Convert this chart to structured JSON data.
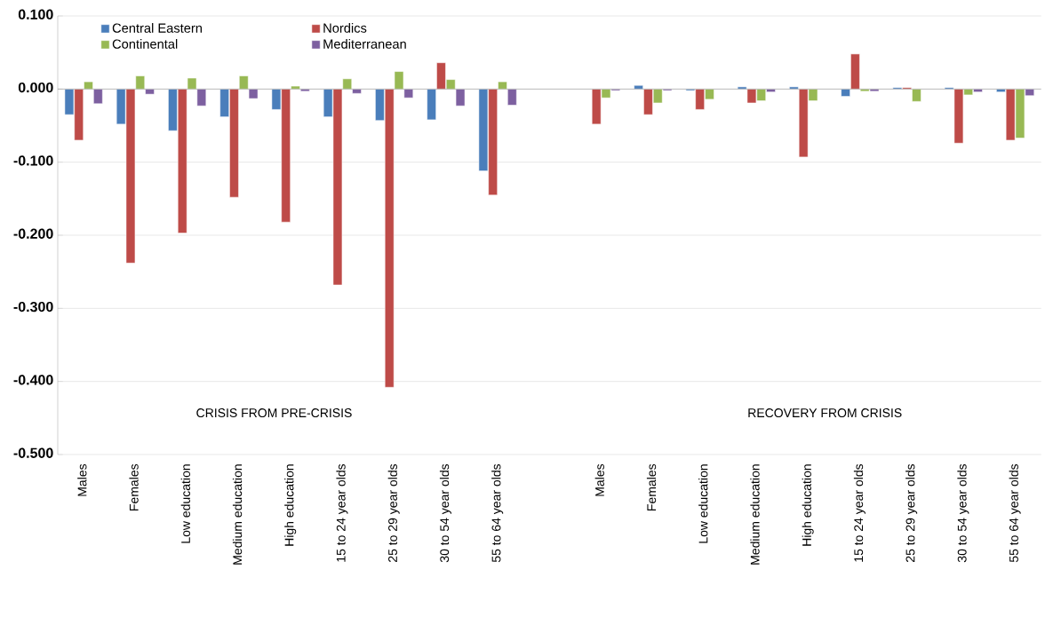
{
  "chart_data": {
    "type": "bar",
    "categories": [
      "Males",
      "Females",
      "Low education",
      "Medium education",
      "High education",
      "15 to 24 year olds",
      "25 to 29 year olds",
      "30 to 54 year olds",
      "55 to 64 year olds",
      null,
      "Males",
      "Females",
      "Low education",
      "Medium education",
      "High education",
      "15 to 24 year olds",
      "25 to 29 year olds",
      "30 to 54 year olds",
      "55 to 64 year olds"
    ],
    "series": [
      {
        "name": "Central Eastern",
        "color": "#4a7ebb",
        "values": [
          -0.035,
          -0.048,
          -0.057,
          -0.038,
          -0.028,
          -0.038,
          -0.043,
          -0.042,
          -0.112,
          null,
          null,
          0.005,
          -0.002,
          0.003,
          0.003,
          -0.01,
          0.002,
          0.002,
          -0.004
        ]
      },
      {
        "name": "Nordics",
        "color": "#be4b48",
        "values": [
          -0.07,
          -0.238,
          -0.197,
          -0.148,
          -0.182,
          -0.268,
          -0.408,
          0.036,
          -0.145,
          null,
          -0.048,
          -0.035,
          -0.028,
          -0.019,
          -0.093,
          0.048,
          0.002,
          -0.074,
          -0.07
        ]
      },
      {
        "name": "Continental",
        "color": "#98b954",
        "values": [
          0.01,
          0.018,
          0.015,
          0.018,
          0.004,
          0.014,
          0.024,
          0.013,
          0.01,
          null,
          -0.012,
          -0.019,
          -0.014,
          -0.016,
          -0.016,
          -0.003,
          -0.017,
          -0.008,
          -0.067
        ]
      },
      {
        "name": "Mediterranean",
        "color": "#7d60a0",
        "values": [
          -0.02,
          -0.007,
          -0.023,
          -0.013,
          -0.003,
          -0.006,
          -0.012,
          -0.023,
          -0.022,
          null,
          -0.002,
          -0.002,
          null,
          -0.004,
          null,
          -0.003,
          null,
          -0.004,
          -0.009
        ]
      }
    ],
    "ylim": [
      -0.5,
      0.1
    ],
    "yticks": [
      {
        "value": 0.1,
        "label": "0.100"
      },
      {
        "value": 0.0,
        "label": "0.000"
      },
      {
        "value": -0.1,
        "label": "-0.100"
      },
      {
        "value": -0.2,
        "label": "-0.200"
      },
      {
        "value": -0.3,
        "label": "-0.300"
      },
      {
        "value": -0.4,
        "label": "-0.400"
      },
      {
        "value": -0.5,
        "label": "-0.500"
      }
    ],
    "grid": "y",
    "legend": "top left",
    "annotations": [
      "CRISIS FROM PRE-CRISIS",
      "RECOVERY FROM CRISIS"
    ]
  }
}
